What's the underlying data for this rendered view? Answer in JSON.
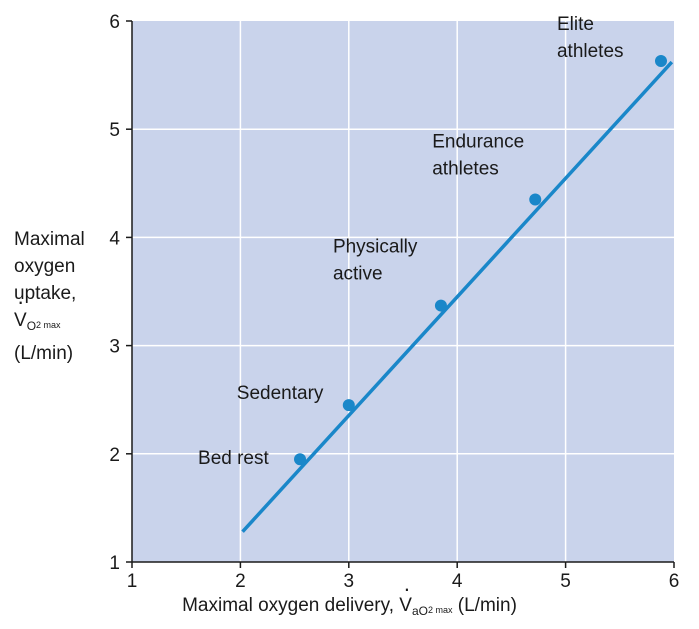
{
  "chart_data": {
    "type": "scatter",
    "xlabel_prefix": "Maximal oxygen delivery, ",
    "xlabel_symbol": "V",
    "xlabel_sub1": "a",
    "xlabel_sub2": "O",
    "xlabel_sub3": "2 max",
    "xlabel_suffix": " (L/min)",
    "ylabel_lines": [
      "Maximal",
      "oxygen",
      "uptake,"
    ],
    "ylabel_symbol": "V",
    "ylabel_sub1": "O",
    "ylabel_sub2": "2 max",
    "ylabel_unit": "(L/min)",
    "xlim": [
      1,
      6
    ],
    "ylim": [
      1,
      6
    ],
    "xticks": [
      "1",
      "2",
      "3",
      "4",
      "5",
      "6"
    ],
    "yticks": [
      "1",
      "2",
      "3",
      "4",
      "5",
      "6"
    ],
    "grid": true,
    "points": [
      {
        "x": 2.55,
        "y": 1.95,
        "label": [
          "Bed rest"
        ]
      },
      {
        "x": 3.0,
        "y": 2.45,
        "label": [
          "Sedentary"
        ]
      },
      {
        "x": 3.85,
        "y": 3.37,
        "label": [
          "Physically",
          "active"
        ]
      },
      {
        "x": 4.72,
        "y": 4.35,
        "label": [
          "Endurance",
          "athletes"
        ]
      },
      {
        "x": 5.88,
        "y": 5.63,
        "label": [
          "Elite",
          "athletes"
        ]
      }
    ],
    "fit_line": {
      "x": [
        2.02,
        5.98
      ],
      "y": [
        1.28,
        5.62
      ]
    },
    "colors": {
      "plot_bg": "#c9d3eb",
      "grid": "#ffffff",
      "series": "#1a87c9",
      "axis": "#1a1a1a"
    }
  }
}
